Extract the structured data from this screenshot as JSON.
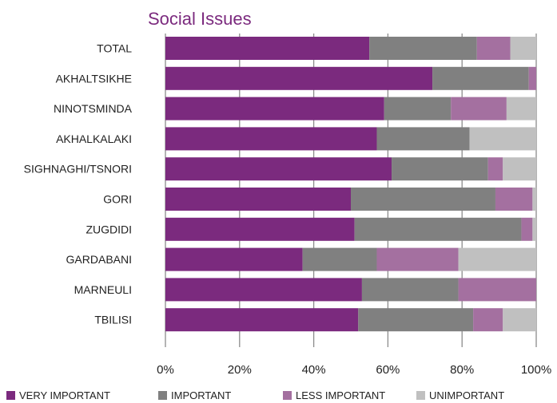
{
  "chart_data": {
    "type": "bar",
    "orientation": "horizontal",
    "stacked": true,
    "title": "Social Issues",
    "categories": [
      "TOTAL",
      "AKHALTSIKHE",
      "NINOTSMINDA",
      "AKHALKALAKI",
      "SIGHNAGHI/TSNORI",
      "GORI",
      "ZUGDIDI",
      "GARDABANI",
      "MARNEULI",
      "TBILISI"
    ],
    "series": [
      {
        "name": "VERY IMPORTANT",
        "color": "#7b2a7e",
        "values": [
          55,
          72,
          59,
          57,
          61,
          50,
          51,
          37,
          53,
          52
        ]
      },
      {
        "name": "IMPORTANT",
        "color": "#808080",
        "values": [
          29,
          26,
          18,
          25,
          26,
          39,
          45,
          20,
          26,
          31
        ]
      },
      {
        "name": "LESS IMPORTANT",
        "color": "#a470a0",
        "values": [
          9,
          2,
          15,
          0,
          4,
          10,
          3,
          22,
          21,
          8
        ]
      },
      {
        "name": "UNIMPORTANT",
        "color": "#c0c0c0",
        "values": [
          7,
          0,
          8,
          18,
          9,
          1,
          1,
          21,
          0,
          9
        ]
      }
    ],
    "xlim": [
      0,
      100
    ],
    "xticks": [
      "0%",
      "20%",
      "40%",
      "60%",
      "80%",
      "100%"
    ],
    "grid": true,
    "legend_position": "bottom"
  }
}
